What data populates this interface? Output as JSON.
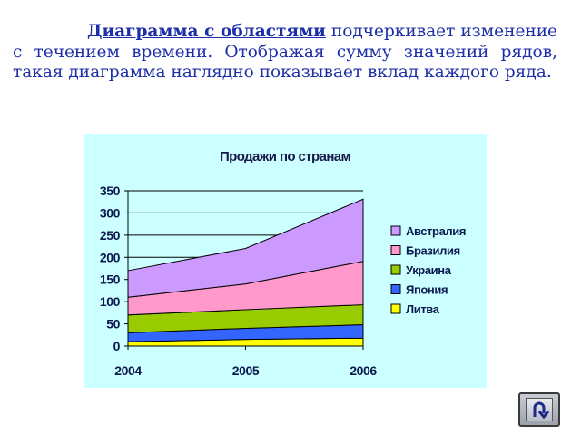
{
  "description": {
    "term": "Диаграмма с областями",
    "rest": " подчеркивает изменение с течением времени. Отображая сумму значений рядов, такая диаграмма наглядно показывает вклад каждого ряда",
    "end": "."
  },
  "chart_data": {
    "type": "area",
    "stacked": true,
    "title": "Продажи по странам",
    "x": [
      "2004",
      "2005",
      "2006"
    ],
    "ylim": [
      0,
      350
    ],
    "yticks": [
      0,
      50,
      100,
      150,
      200,
      250,
      300,
      350
    ],
    "grid": "horizontal",
    "legend_position": "right",
    "series": [
      {
        "name": "Литва",
        "values": [
          10,
          15,
          18
        ],
        "color": "#ffff00"
      },
      {
        "name": "Япония",
        "values": [
          20,
          25,
          30
        ],
        "color": "#3366ff"
      },
      {
        "name": "Украина",
        "values": [
          40,
          42,
          45
        ],
        "color": "#99cc00"
      },
      {
        "name": "Бразилия",
        "values": [
          40,
          58,
          98
        ],
        "color": "#ff99cc"
      },
      {
        "name": "Австралия",
        "values": [
          60,
          80,
          140
        ],
        "color": "#cc99ff"
      }
    ],
    "legend_order": [
      "Австралия",
      "Бразилия",
      "Украина",
      "Япония",
      "Литва"
    ]
  },
  "nav": {
    "return_icon": "u-turn-arrow-icon"
  }
}
